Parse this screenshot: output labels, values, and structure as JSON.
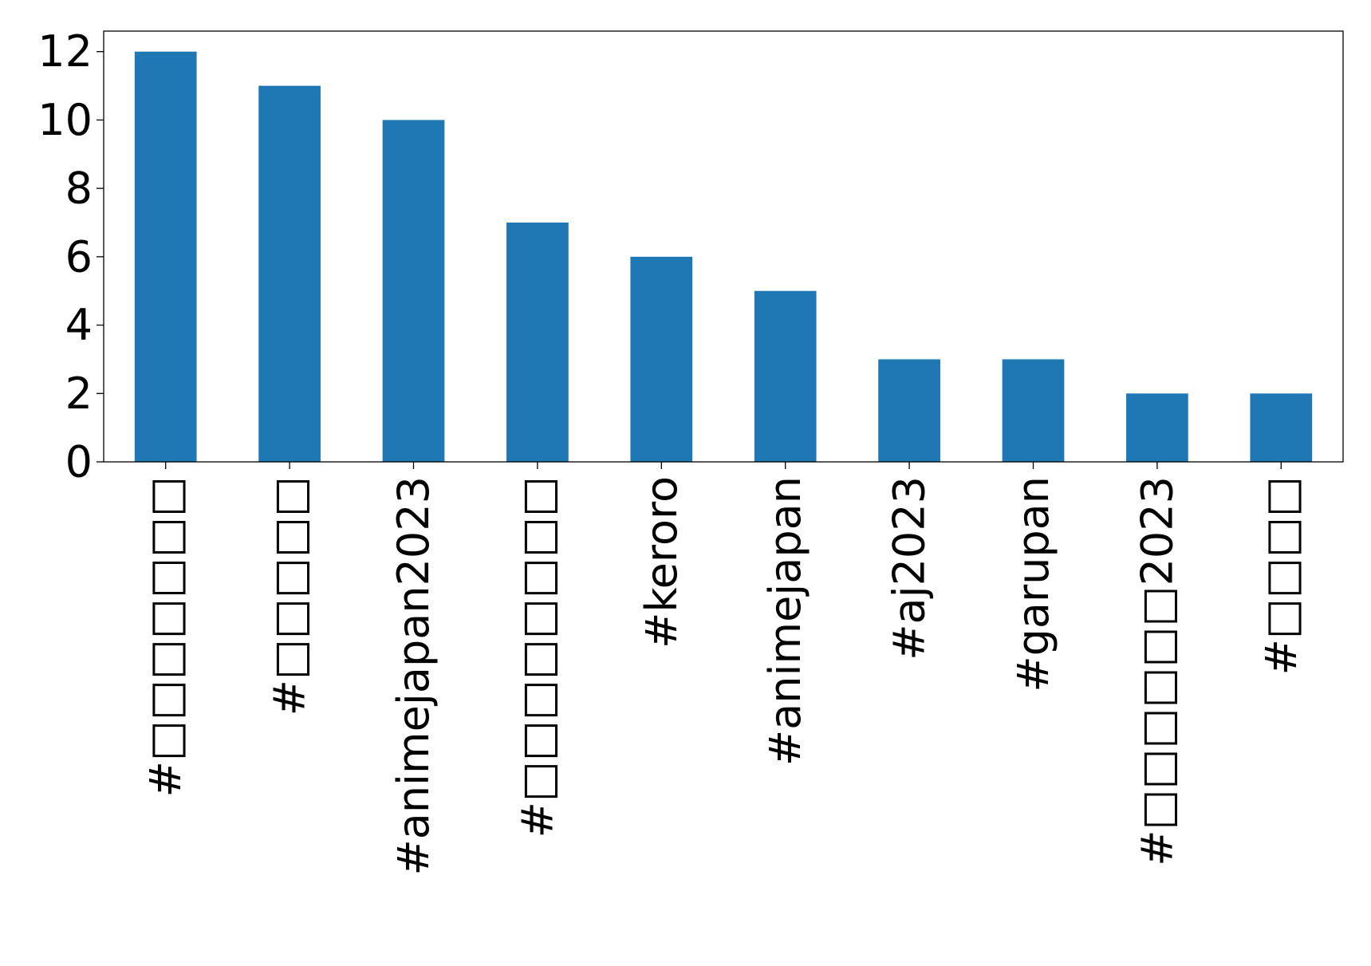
{
  "chart_data": {
    "type": "bar",
    "title": "",
    "xlabel": "",
    "ylabel": "",
    "categories": [
      "#□□□□□□□",
      "#□□□□□",
      "#animejapan2023",
      "#□□□□□□□□",
      "#keroro",
      "#animejapan",
      "#aj2023",
      "#garupan",
      "#□□□□□□2023",
      "#□□□□"
    ],
    "values": [
      12,
      11,
      10,
      7,
      6,
      5,
      3,
      3,
      2,
      2
    ],
    "ylim": [
      0,
      12.6
    ],
    "yticks": [
      0,
      2,
      4,
      6,
      8,
      10,
      12
    ],
    "grid": false,
    "legend": "none",
    "colors": {
      "bar": "#1f77b4",
      "axis": "#000000",
      "background": "#ffffff"
    }
  }
}
